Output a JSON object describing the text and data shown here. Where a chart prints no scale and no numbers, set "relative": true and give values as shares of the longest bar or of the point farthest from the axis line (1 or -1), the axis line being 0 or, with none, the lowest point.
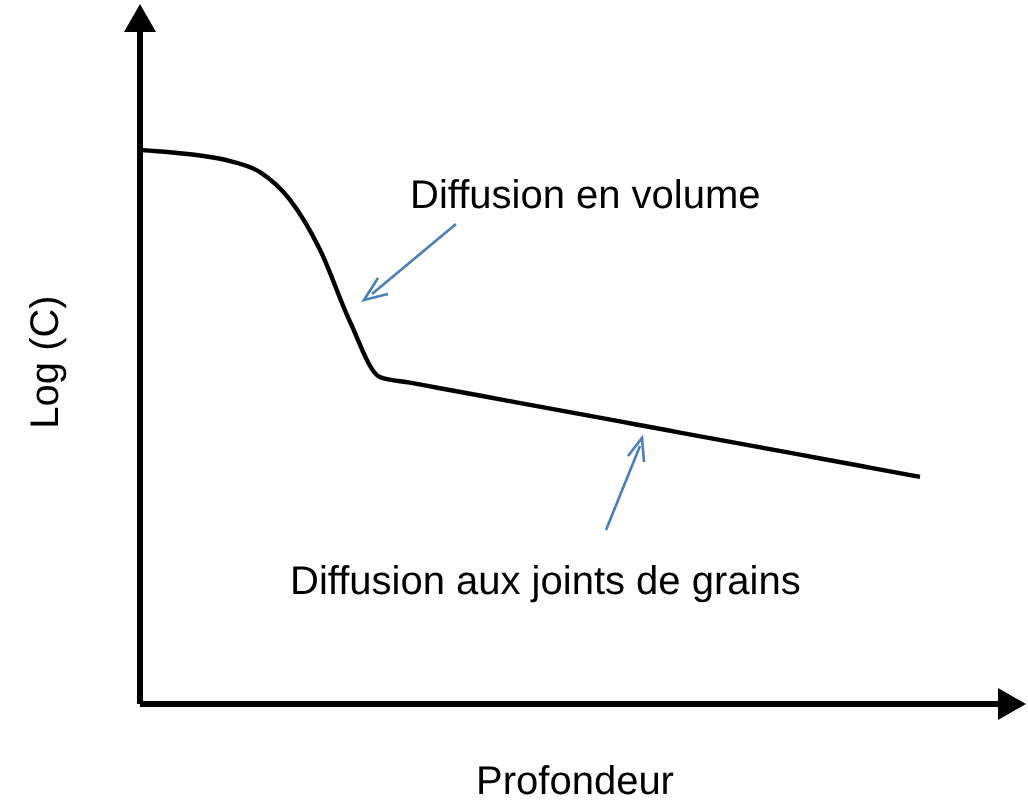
{
  "chart_data": {
    "type": "line",
    "relative": true,
    "xlabel": "Profondeur",
    "ylabel": "Log (C)",
    "categories": [
      null,
      null,
      null,
      null,
      null,
      null,
      null,
      null,
      null,
      null,
      null,
      null,
      null,
      null,
      null,
      null,
      null,
      null,
      null,
      null,
      null,
      null,
      null,
      null,
      null,
      null,
      null,
      null,
      null,
      null
    ],
    "values": [
      1.0,
      0.996,
      0.99,
      0.98,
      0.96,
      0.91,
      0.82,
      0.69,
      0.59,
      0.58,
      0.57,
      0.56,
      0.55,
      0.54,
      0.53,
      0.52,
      0.51,
      0.5,
      0.49,
      0.48,
      0.47,
      0.46,
      0.45,
      0.44,
      0.43,
      0.42,
      0.41,
      null,
      null,
      null
    ],
    "color": "#000000",
    "annotations": [
      "Diffusion en volume",
      "Diffusion aux joints de grains"
    ]
  }
}
